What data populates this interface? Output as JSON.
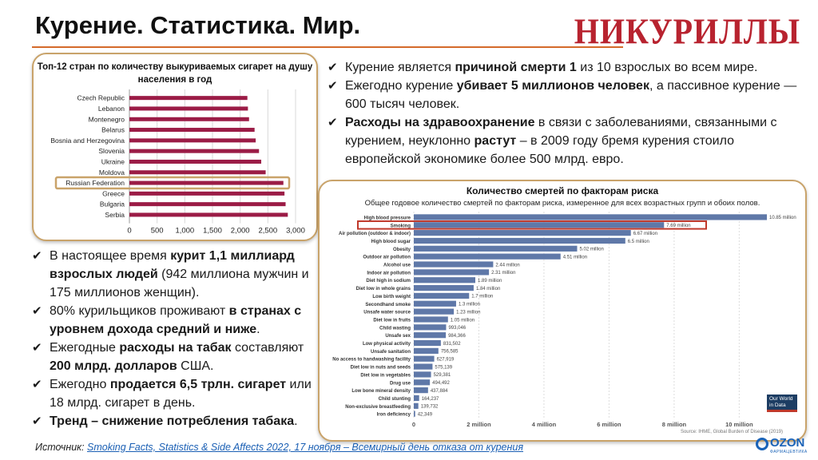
{
  "header": {
    "title": "Курение. Статистика. Мир.",
    "logo_text": "НИКУРИЛЛЫ"
  },
  "colors": {
    "accent_rule": "#d46a2a",
    "bar_left": "#9b1c46",
    "bar_right": "#5f78a8",
    "highlight": "#c9a36a",
    "highlight_right": "#c0392b"
  },
  "chart_cigarettes": {
    "title": "Топ-12 стран по количеству выкуриваемых сигарет на душу населения в год"
  },
  "chart_deaths": {
    "title": "Количество смертей по факторам риска",
    "subtitle": "Общее годовое количество смертей по факторам риска, измеренное для всех возрастных групп и обоих полов.",
    "source_note": "Source: IHME, Global Burden of Disease (2019)",
    "owid_label": "Our World in Data"
  },
  "chart_data": [
    {
      "type": "bar",
      "orientation": "horizontal",
      "title": "Топ-12 стран по количеству выкуриваемых сигарет на душу населения в год",
      "categories": [
        "Czech Republic",
        "Lebanon",
        "Montenegro",
        "Belarus",
        "Bosnia and Herzegovina",
        "Slovenia",
        "Ukraine",
        "Moldova",
        "Russian Federation",
        "Greece",
        "Bulgaria",
        "Serbia"
      ],
      "values": [
        2130,
        2140,
        2160,
        2260,
        2280,
        2340,
        2380,
        2460,
        2780,
        2800,
        2820,
        2860
      ],
      "highlight": "Russian Federation",
      "xlim": [
        0,
        3000
      ],
      "xticks": [
        "0",
        "500",
        "1,000",
        "1,500",
        "2,000",
        "2,500",
        "3,000"
      ],
      "grid": true
    },
    {
      "type": "bar",
      "orientation": "horizontal",
      "title": "Количество смертей по факторам риска",
      "categories": [
        "High blood pressure",
        "Smoking",
        "Air pollution (outdoor & indoor)",
        "High blood sugar",
        "Obesity",
        "Outdoor air pollution",
        "Alcohol use",
        "Indoor air pollution",
        "Diet high in sodium",
        "Diet low in whole grains",
        "Low birth weight",
        "Secondhand smoke",
        "Unsafe water source",
        "Diet low in fruits",
        "Child wasting",
        "Unsafe sex",
        "Low physical activity",
        "Unsafe sanitation",
        "No access to handwashing facility",
        "Diet low in nuts and seeds",
        "Diet low in vegetables",
        "Drug use",
        "Low bone mineral density",
        "Child stunting",
        "Non-exclusive breastfeeding",
        "Iron deficiency"
      ],
      "values": [
        10850000,
        7690000,
        6670000,
        6500000,
        5020000,
        4510000,
        2440000,
        2310000,
        1890000,
        1840000,
        1700000,
        1300000,
        1230000,
        1050000,
        993046,
        984366,
        831502,
        756585,
        627919,
        575139,
        529381,
        494492,
        437884,
        164237,
        139732,
        42349
      ],
      "value_labels": [
        "10.85 million",
        "7.69 million",
        "6.67 million",
        "6.5 million",
        "5.02 million",
        "4.51 million",
        "2.44 million",
        "2.31 million",
        "1.89 million",
        "1.84 million",
        "1.7 million",
        "1.3 million",
        "1.23 million",
        "1.05 million",
        "993,046",
        "984,366",
        "831,502",
        "756,585",
        "627,919",
        "575,139",
        "529,381",
        "494,492",
        "437,884",
        "164,237",
        "139,732",
        "42,349"
      ],
      "highlight": "Smoking",
      "xlim": [
        0,
        10850000
      ],
      "xticks": [
        "0",
        "2 million",
        "4 million",
        "6 million",
        "8 million",
        "10 million"
      ],
      "grid": true
    }
  ],
  "bullets_right": [
    [
      {
        "t": "Курение является ",
        "b": false
      },
      {
        "t": "причиной смерти 1",
        "b": true
      },
      {
        "t": " из 10 взрослых во всем мире.",
        "b": false
      }
    ],
    [
      {
        "t": "Ежегодно курение ",
        "b": false
      },
      {
        "t": "убивает 5 миллионов человек",
        "b": true
      },
      {
        "t": ", а пассивное курение — 600 тысяч человек.",
        "b": false
      }
    ],
    [
      {
        "t": "Расходы на здравоохранение",
        "b": true
      },
      {
        "t": " в связи с заболеваниями, связанными с курением, неуклонно ",
        "b": false
      },
      {
        "t": "растут",
        "b": true
      },
      {
        "t": " – в 2009 году бремя курения стоило европейской экономике более 500 млрд. евро.",
        "b": false
      }
    ]
  ],
  "bullets_left": [
    [
      {
        "t": "В настоящее время ",
        "b": false
      },
      {
        "t": "курит 1,1 миллиард взрослых людей",
        "b": true
      },
      {
        "t": " (942 миллиона мужчин и 175 миллионов женщин).",
        "b": false
      }
    ],
    [
      {
        "t": "80% курильщиков проживают ",
        "b": false
      },
      {
        "t": "в странах с уровнем дохода средний и ниже",
        "b": true
      },
      {
        "t": ".",
        "b": false
      }
    ],
    [
      {
        "t": "Ежегодные ",
        "b": false
      },
      {
        "t": "расходы на табак",
        "b": true
      },
      {
        "t": " составляют ",
        "b": false
      },
      {
        "t": "200 млрд. долларов",
        "b": true
      },
      {
        "t": " США.",
        "b": false
      }
    ],
    [
      {
        "t": "Ежегодно ",
        "b": false
      },
      {
        "t": "продается 6,5 трлн. сигарет",
        "b": true
      },
      {
        "t": " или 18 млрд. сигарет в день.",
        "b": false
      }
    ],
    [
      {
        "t": "Тренд – снижение потребления табака",
        "b": true
      },
      {
        "t": ".",
        "b": false
      }
    ]
  ],
  "footer": {
    "source_label": "Источник: ",
    "source_link": "Smoking Facts, Statistics & Side Affects 2022, 17 ноября – Всемирный день отказа от курения",
    "partner_logo": "OZON",
    "partner_sub": "ФАРМАЦЕВТИКА"
  }
}
